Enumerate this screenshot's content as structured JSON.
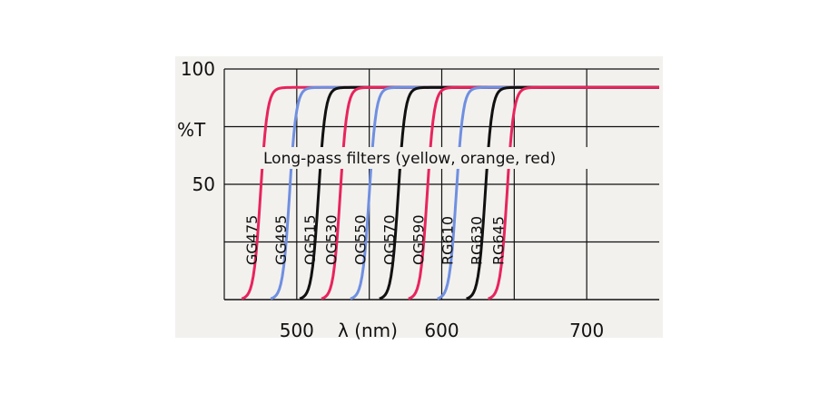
{
  "chart_data": {
    "type": "line",
    "title": "",
    "xlabel": "λ (nm)",
    "ylabel": "%T",
    "xlim": [
      450,
      750
    ],
    "ylim": [
      0,
      100
    ],
    "x_ticks": [
      500,
      600,
      700
    ],
    "y_ticks": [
      50,
      100
    ],
    "grid": true,
    "annotation": "Long-pass filters (yellow, orange, red)",
    "series": [
      {
        "name": "GG475",
        "color": "#e8245c",
        "cut_on_nm": 475,
        "max_T": 92
      },
      {
        "name": "GG495",
        "color": "#6f8fe0",
        "cut_on_nm": 495,
        "max_T": 92
      },
      {
        "name": "OG515",
        "color": "#111111",
        "cut_on_nm": 515,
        "max_T": 92
      },
      {
        "name": "OG530",
        "color": "#e8245c",
        "cut_on_nm": 530,
        "max_T": 92
      },
      {
        "name": "OG550",
        "color": "#6f8fe0",
        "cut_on_nm": 550,
        "max_T": 92
      },
      {
        "name": "OG570",
        "color": "#111111",
        "cut_on_nm": 570,
        "max_T": 92
      },
      {
        "name": "OG590",
        "color": "#e8245c",
        "cut_on_nm": 590,
        "max_T": 92
      },
      {
        "name": "RG610",
        "color": "#6f8fe0",
        "cut_on_nm": 610,
        "max_T": 92
      },
      {
        "name": "RG630",
        "color": "#111111",
        "cut_on_nm": 630,
        "max_T": 92
      },
      {
        "name": "RG645",
        "color": "#e8245c",
        "cut_on_nm": 645,
        "max_T": 92
      }
    ],
    "colors": {
      "plot_background": "#f2f1ee",
      "grid": "#111111"
    }
  }
}
